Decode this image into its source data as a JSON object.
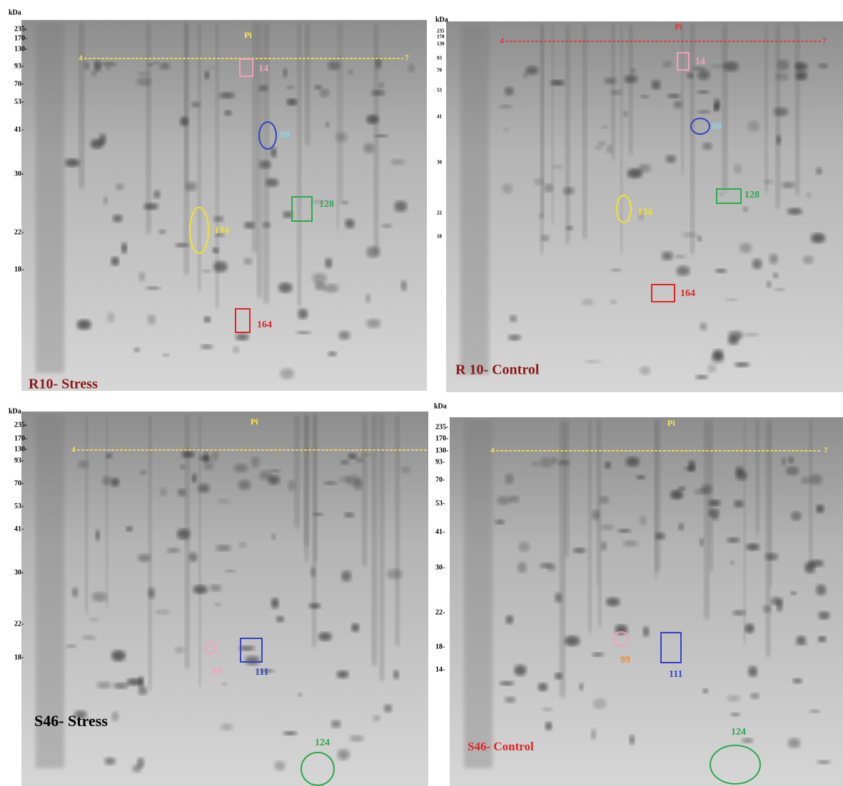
{
  "panels": [
    {
      "label": "R10- Stress",
      "unit": "kDa",
      "markers": [
        "235-",
        "170-",
        "130-",
        "93-",
        "70-",
        "53-",
        "41-",
        "30-",
        "22-",
        "18-"
      ],
      "pi": "Pi",
      "ph_range": [
        "4",
        "7"
      ],
      "spots": [
        {
          "label": "14"
        },
        {
          "label": "80"
        },
        {
          "label": "128"
        },
        {
          "label": "134"
        },
        {
          "label": "164"
        }
      ]
    },
    {
      "label": "R 10- Control",
      "unit": "kDa",
      "markers": [
        "235",
        "170",
        "130",
        "93",
        "70",
        "53",
        "41",
        "30",
        "22",
        "18"
      ],
      "pi": "Pi",
      "ph_range": [
        "4",
        "7"
      ],
      "spots": [
        {
          "label": "14"
        },
        {
          "label": "80"
        },
        {
          "label": "128"
        },
        {
          "label": "134"
        },
        {
          "label": "164"
        }
      ]
    },
    {
      "label": "S46- Stress",
      "unit": "kDa",
      "markers": [
        "235-",
        "170-",
        "130-",
        "93-",
        "70-",
        "53-",
        "41-",
        "30-",
        "22-",
        "18-"
      ],
      "pi": "Pi",
      "ph_range": [
        "4"
      ],
      "spots": [
        {
          "label": "99"
        },
        {
          "label": "111"
        },
        {
          "label": "124"
        }
      ]
    },
    {
      "label": "S46- Control",
      "unit": "kDa",
      "markers": [
        "235-",
        "170-",
        "130-",
        "93-",
        "70-",
        "53-",
        "41-",
        "30-",
        "22-",
        "18-",
        "14-"
      ],
      "pi": "Pi",
      "ph_range": [
        "4",
        "7"
      ],
      "spots": [
        {
          "label": "99"
        },
        {
          "label": "111"
        },
        {
          "label": "124"
        }
      ]
    }
  ]
}
